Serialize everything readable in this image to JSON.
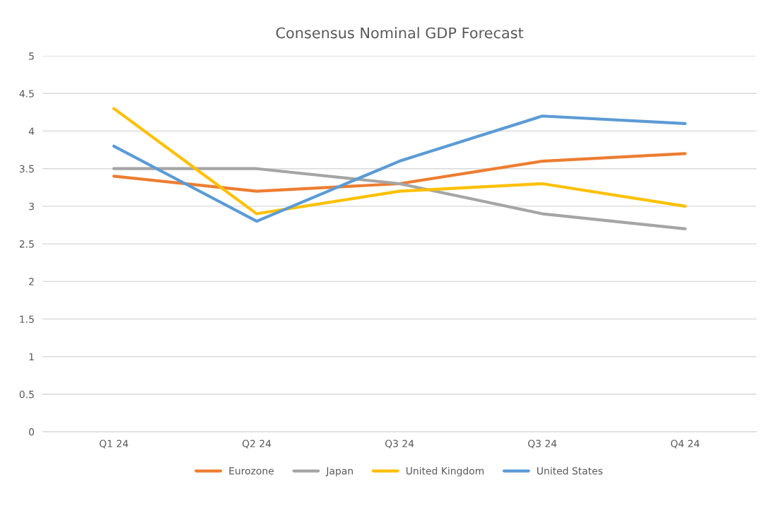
{
  "chart_data": {
    "type": "line",
    "title": "Consensus Nominal GDP Forecast",
    "categories": [
      "Q1 24",
      "Q2 24",
      "Q3 24",
      "Q3 24",
      "Q4 24"
    ],
    "series": [
      {
        "name": "Eurozone",
        "color": "#ed7d31",
        "values": [
          3.4,
          3.2,
          3.3,
          3.6,
          3.7
        ]
      },
      {
        "name": "Japan",
        "color": "#a5a5a5",
        "values": [
          3.5,
          3.5,
          3.3,
          2.9,
          2.7
        ]
      },
      {
        "name": "United Kingdom",
        "color": "#ffc000",
        "values": [
          4.3,
          2.9,
          3.2,
          3.3,
          3.0
        ]
      },
      {
        "name": "United States",
        "color": "#5b9bd5",
        "values": [
          3.8,
          2.8,
          3.6,
          4.2,
          4.1
        ]
      }
    ],
    "ylim": [
      0,
      5
    ],
    "yticks": [
      0,
      0.5,
      1,
      1.5,
      2,
      2.5,
      3,
      3.5,
      4,
      4.5,
      5
    ],
    "grid": "y",
    "legend": "bottom",
    "marker": "none",
    "line_style": "solid"
  }
}
